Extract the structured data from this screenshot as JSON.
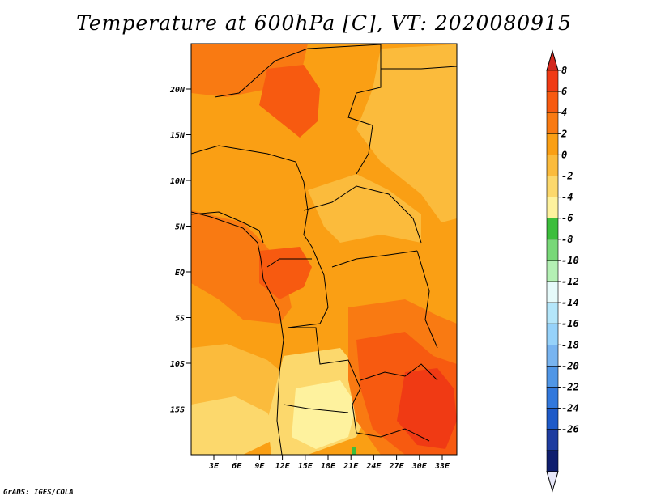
{
  "title": "Temperature at 600hPa [C], VT: 2020080915",
  "credit": "GrADS: IGES/COLA",
  "map": {
    "lat_labels": [
      "20N",
      "15N",
      "10N",
      "5N",
      "EQ",
      "5S",
      "10S",
      "15S"
    ],
    "lon_labels": [
      "3E",
      "6E",
      "9E",
      "12E",
      "15E",
      "18E",
      "21E",
      "24E",
      "27E",
      "30E",
      "33E"
    ]
  },
  "colorbar": {
    "labels": [
      "8",
      "6",
      "4",
      "2",
      "0",
      "-2",
      "-4",
      "-6",
      "-8",
      "-10",
      "-12",
      "-14",
      "-16",
      "-18",
      "-20",
      "-22",
      "-24",
      "-26"
    ],
    "colors": [
      "#f03a14",
      "#f75a10",
      "#f97a12",
      "#fa9f14",
      "#fbbb3c",
      "#fcd86c",
      "#fef29e",
      "#3cbe3c",
      "#78d878",
      "#b4f0b4",
      "#e6fafa",
      "#b4e6fa",
      "#96d2fa",
      "#78b4f0",
      "#5096e6",
      "#3278dc",
      "#1e5ac8",
      "#1e3ca0",
      "#0f1e6e"
    ],
    "top_arrow_color": "#d2281e",
    "bottom_arrow_color": "#e6e6f8"
  },
  "fill_colors": {
    "base": "#fa9f14",
    "warm": "#f97a12",
    "hot": "#f75a10",
    "hottest": "#f03a14",
    "cool": "#fbbb3c",
    "cooler": "#fcd86c",
    "coolest": "#fef29e",
    "green": "#3cbe3c"
  }
}
